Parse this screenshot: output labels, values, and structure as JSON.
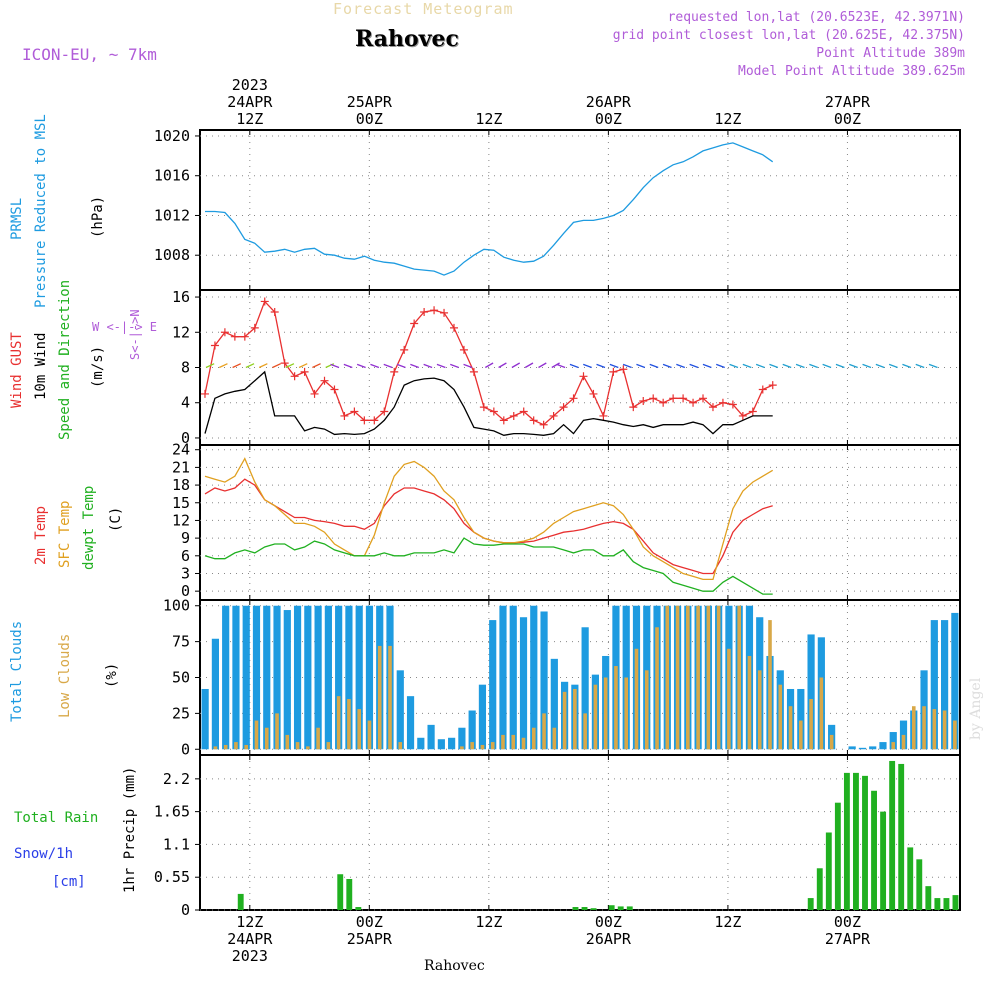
{
  "header": {
    "title": "Forecast Meteogram",
    "location": "Rahovec",
    "model": "ICON-EU, ~ 7km",
    "requested": "requested lon,lat (20.6523E, 42.3971N)",
    "gridpoint": "grid point closest lon,lat (20.625E, 42.375N)",
    "point_alt": "Point Altitude 389m",
    "model_alt": "Model Point Altitude 389.625m"
  },
  "footer": {
    "location": "Rahovec",
    "signature": "by Angel"
  },
  "time_axis": {
    "top_labels": [
      {
        "line1": "2023",
        "line2": "24APR",
        "line3": "12Z",
        "hour": 0
      },
      {
        "line1": "",
        "line2": "25APR",
        "line3": "00Z",
        "hour": 12
      },
      {
        "line1": "",
        "line2": "",
        "line3": "12Z",
        "hour": 24
      },
      {
        "line1": "",
        "line2": "26APR",
        "line3": "00Z",
        "hour": 36
      },
      {
        "line1": "",
        "line2": "",
        "line3": "12Z",
        "hour": 48
      },
      {
        "line1": "",
        "line2": "27APR",
        "line3": "00Z",
        "hour": 60
      }
    ],
    "bottom_labels": [
      {
        "line1": "12Z",
        "line2": "24APR",
        "line3": "2023",
        "hour": 0
      },
      {
        "line1": "00Z",
        "line2": "25APR",
        "line3": "",
        "hour": 12
      },
      {
        "line1": "12Z",
        "line2": "",
        "line3": "",
        "hour": 24
      },
      {
        "line1": "00Z",
        "line2": "26APR",
        "line3": "",
        "hour": 36
      },
      {
        "line1": "12Z",
        "line2": "",
        "line3": "",
        "hour": 48
      },
      {
        "line1": "00Z",
        "line2": "27APR",
        "line3": "",
        "hour": 60
      }
    ]
  },
  "panel_labels": {
    "pressure": {
      "l1": "PRMSL",
      "l2": "Pressure Reduced to MSL",
      "unit": "(hPa)",
      "c1": "#1e9be0",
      "c2": "#1e9be0"
    },
    "wind": {
      "l1": "Wind GUST",
      "l2": "10m Wind",
      "l3": "Speed and Direction",
      "unit": "(m/s)",
      "compass_ns": "S<-|->N",
      "compass_we": "W <-|-> E",
      "c1": "#e83030",
      "c2": "#000000",
      "c3": "#20b020",
      "compass_color": "#b05cd8"
    },
    "temp": {
      "l1": "2m Temp",
      "l2": "SFC Temp",
      "l3": "dewpt Temp",
      "unit": "(C)",
      "c1": "#e83030",
      "c2": "#e0a020",
      "c3": "#20b020"
    },
    "clouds": {
      "l1": "Total Clouds",
      "l2": "Low Clouds",
      "unit": "(%)",
      "c1": "#1e9be0",
      "c2": "#d8a848"
    },
    "precip": {
      "l1": "Total  Rain",
      "l2": "Snow/1h",
      "l3": "[cm]",
      "unit": "1hr Precip (mm)",
      "c1": "#20b020",
      "c2": "#2a3ee8",
      "c3": "#2a3ee8"
    }
  },
  "chart_data": [
    {
      "type": "line",
      "name": "pressure",
      "ylabel": "(hPa)",
      "ylim": [
        1004.5,
        1020.6
      ],
      "yticks": [
        1008,
        1012,
        1016,
        1020
      ],
      "x_hours_start": -4.5,
      "x_step_hours": 1,
      "series": [
        {
          "name": "PRMSL",
          "color": "#1e9be0",
          "values": [
            1012.4,
            1012.4,
            1012.3,
            1011.2,
            1009.6,
            1009.2,
            1008.3,
            1008.4,
            1008.6,
            1008.3,
            1008.6,
            1008.7,
            1008.1,
            1008.0,
            1007.7,
            1007.6,
            1007.9,
            1007.5,
            1007.3,
            1007.2,
            1006.9,
            1006.6,
            1006.5,
            1006.4,
            1006.0,
            1006.4,
            1007.3,
            1008.0,
            1008.6,
            1008.5,
            1007.8,
            1007.5,
            1007.3,
            1007.4,
            1007.9,
            1009.0,
            1010.2,
            1011.3,
            1011.5,
            1011.5,
            1011.7,
            1012.0,
            1012.5,
            1013.6,
            1014.8,
            1015.8,
            1016.5,
            1017.1,
            1017.4,
            1017.9,
            1018.5,
            1018.8,
            1019.1,
            1019.3,
            1018.9,
            1018.5,
            1018.1,
            1017.4
          ]
        }
      ]
    },
    {
      "type": "line",
      "name": "wind",
      "ylabel": "(m/s)",
      "ylim": [
        -0.8,
        16.8
      ],
      "yticks": [
        0,
        4,
        8,
        12,
        16
      ],
      "x_hours_start": -4.5,
      "x_step_hours": 1,
      "series": [
        {
          "name": "Wind GUST",
          "color": "#e83030",
          "marker": "+",
          "values": [
            5.0,
            10.5,
            12.0,
            11.5,
            11.5,
            12.5,
            15.5,
            14.3,
            8.5,
            7.0,
            7.5,
            5.0,
            6.5,
            5.5,
            2.5,
            3.0,
            2.0,
            2.0,
            3.0,
            7.5,
            10.0,
            13.0,
            14.3,
            14.5,
            14.2,
            12.5,
            10.0,
            7.5,
            3.5,
            3.0,
            2.0,
            2.5,
            3.0,
            2.0,
            1.5,
            2.5,
            3.5,
            4.5,
            7.0,
            5.0,
            2.5,
            7.5,
            7.8,
            3.5,
            4.2,
            4.5,
            4.0,
            4.5,
            4.5,
            4.0,
            4.5,
            3.5,
            4.0,
            3.8,
            2.5,
            3.0,
            5.5,
            6.0
          ]
        },
        {
          "name": "10m Wind",
          "color": "#000000",
          "values": [
            0.5,
            4.5,
            5.0,
            5.3,
            5.5,
            6.5,
            7.5,
            2.5,
            2.5,
            2.5,
            0.8,
            1.2,
            1.0,
            0.4,
            0.5,
            0.4,
            0.5,
            1.0,
            2.0,
            3.5,
            6.0,
            6.5,
            6.7,
            6.8,
            6.5,
            5.5,
            3.5,
            1.2,
            1.0,
            0.8,
            0.3,
            0.5,
            0.5,
            0.4,
            0.3,
            0.5,
            1.5,
            0.5,
            2.0,
            2.2,
            2.0,
            1.8,
            1.5,
            1.3,
            1.5,
            1.2,
            1.5,
            1.5,
            1.5,
            1.8,
            1.5,
            0.5,
            1.5,
            1.5,
            2.0,
            2.5,
            2.5,
            2.5
          ]
        }
      ]
    },
    {
      "type": "line",
      "name": "temp",
      "ylabel": "(C)",
      "ylim": [
        -1.5,
        24.8
      ],
      "yticks": [
        0,
        3,
        6,
        9,
        12,
        15,
        18,
        21,
        24
      ],
      "x_hours_start": -4.5,
      "x_step_hours": 1,
      "series": [
        {
          "name": "2m Temp",
          "color": "#e83030",
          "values": [
            16.5,
            17.5,
            17.0,
            17.5,
            19.0,
            18.0,
            15.5,
            14.5,
            13.5,
            12.5,
            12.5,
            12.0,
            11.8,
            11.5,
            11.0,
            11.0,
            10.5,
            11.5,
            14.5,
            16.5,
            17.5,
            17.5,
            17.0,
            16.5,
            15.5,
            14.0,
            11.5,
            10.0,
            9.0,
            8.5,
            8.2,
            8.2,
            8.3,
            8.5,
            9.0,
            9.5,
            10.0,
            10.2,
            10.5,
            11.0,
            11.5,
            11.8,
            11.5,
            10.5,
            8.5,
            6.5,
            5.5,
            4.5,
            4.0,
            3.5,
            3.0,
            3.0,
            6.0,
            10.0,
            12.0,
            13.0,
            14.0,
            14.5
          ]
        },
        {
          "name": "SFC Temp",
          "color": "#e0a020",
          "values": [
            19.5,
            19.0,
            18.5,
            19.5,
            22.5,
            18.5,
            15.5,
            14.5,
            13.0,
            11.5,
            11.5,
            11.0,
            10.0,
            8.0,
            7.0,
            6.0,
            6.0,
            9.5,
            15.0,
            19.5,
            21.5,
            22.0,
            21.0,
            19.5,
            17.0,
            15.5,
            12.5,
            10.0,
            9.0,
            8.5,
            8.2,
            8.2,
            8.5,
            9.0,
            10.0,
            11.5,
            12.5,
            13.5,
            14.0,
            14.5,
            15.0,
            14.5,
            13.0,
            10.5,
            7.5,
            6.0,
            5.0,
            4.0,
            3.0,
            2.5,
            2.0,
            2.0,
            8.0,
            14.0,
            17.0,
            18.5,
            19.5,
            20.5
          ]
        },
        {
          "name": "dewpt Temp",
          "color": "#20b020",
          "values": [
            6.0,
            5.5,
            5.5,
            6.5,
            7.0,
            6.5,
            7.5,
            8.0,
            8.0,
            7.0,
            7.5,
            8.5,
            8.0,
            7.0,
            6.5,
            6.0,
            6.0,
            6.0,
            6.5,
            6.0,
            6.0,
            6.5,
            6.5,
            6.5,
            7.0,
            6.5,
            9.0,
            8.0,
            7.8,
            7.8,
            8.0,
            8.0,
            8.0,
            7.5,
            7.5,
            7.5,
            7.0,
            6.5,
            7.0,
            7.0,
            6.0,
            6.0,
            7.0,
            5.0,
            4.0,
            3.5,
            3.0,
            1.5,
            1.0,
            0.5,
            0.0,
            0.0,
            1.5,
            2.5,
            1.5,
            0.5,
            -0.5,
            -0.5
          ]
        }
      ]
    },
    {
      "type": "bar",
      "name": "clouds",
      "ylabel": "(%)",
      "ylim": [
        -4,
        104
      ],
      "yticks": [
        0,
        25,
        50,
        75,
        100
      ],
      "x_hours_start": -4.5,
      "x_step_hours": 1,
      "series": [
        {
          "name": "Total Clouds",
          "color": "#1e9be0",
          "values": [
            42,
            77,
            100,
            100,
            100,
            100,
            100,
            100,
            97,
            100,
            100,
            100,
            100,
            100,
            100,
            100,
            100,
            100,
            100,
            55,
            37,
            8,
            17,
            7,
            8,
            15,
            27,
            45,
            90,
            100,
            100,
            92,
            100,
            96,
            63,
            47,
            45,
            85,
            52,
            65,
            100,
            100,
            100,
            100,
            100,
            100,
            100,
            100,
            100,
            100,
            100,
            100,
            100,
            100,
            92,
            65,
            55,
            42,
            42,
            80,
            78,
            17,
            0,
            2,
            1,
            2,
            5,
            12,
            20,
            27,
            55,
            90,
            90,
            95
          ]
        },
        {
          "name": "Low Clouds",
          "color": "#d8a848",
          "values": [
            0,
            2,
            3,
            5,
            3,
            20,
            15,
            25,
            10,
            5,
            2,
            15,
            5,
            37,
            35,
            28,
            20,
            72,
            72,
            5,
            0,
            0,
            0,
            0,
            0,
            2,
            5,
            3,
            5,
            10,
            10,
            8,
            15,
            25,
            15,
            40,
            42,
            25,
            45,
            50,
            58,
            50,
            70,
            55,
            85,
            100,
            100,
            100,
            100,
            100,
            100,
            70,
            100,
            65,
            55,
            90,
            45,
            30,
            20,
            35,
            50,
            10,
            0,
            0,
            0,
            0,
            0,
            5,
            10,
            30,
            30,
            28,
            27,
            20
          ]
        }
      ]
    },
    {
      "type": "bar",
      "name": "precip",
      "ylabel": "1hr Precip (mm)",
      "ylim": [
        0,
        2.6
      ],
      "yticks": [
        0,
        0.55,
        1.1,
        1.65,
        2.2
      ],
      "x_hours_start": -4.5,
      "x_step_hours": 1,
      "series": [
        {
          "name": "Total Rain",
          "color": "#20b020",
          "values": [
            0,
            0,
            0,
            0,
            0.27,
            0,
            0,
            0,
            0,
            0,
            0,
            0,
            0,
            0,
            0,
            0.6,
            0.52,
            0.05,
            0,
            0,
            0,
            0,
            0,
            0,
            0,
            0,
            0,
            0,
            0,
            0,
            0,
            0,
            0,
            0,
            0,
            0,
            0,
            0,
            0,
            0,
            0,
            0.05,
            0.05,
            0.03,
            0,
            0.08,
            0.06,
            0.06,
            0,
            0,
            0,
            0,
            0,
            0,
            0,
            0,
            0,
            0,
            0,
            0,
            0,
            0,
            0,
            0,
            0,
            0,
            0,
            0.2,
            0.7,
            1.3,
            1.8,
            2.3,
            2.3,
            2.25,
            2.0,
            1.65,
            2.5,
            2.45,
            1.05,
            0.85,
            0.4,
            0.2,
            0.2,
            0.25
          ]
        }
      ]
    }
  ]
}
